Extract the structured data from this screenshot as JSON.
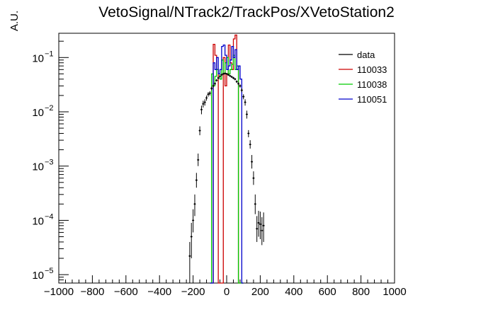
{
  "chart_data": {
    "type": "histogram",
    "title": "VetoSignal/NTrack2/TrackPos/XVetoStation2",
    "ylabel": "A.U.",
    "xlabel": "",
    "xlim": [
      -1000,
      1000
    ],
    "ylim": [
      7e-06,
      0.28
    ],
    "yscale": "log",
    "grid": false,
    "legend_position": "top-right",
    "x_ticks": [
      -1000,
      -800,
      -600,
      -400,
      -200,
      0,
      200,
      400,
      600,
      800,
      1000
    ],
    "x_tick_labels": [
      "−1000",
      "−800",
      "−600",
      "−400",
      "−200",
      "0",
      "200",
      "400",
      "600",
      "800",
      "1000"
    ],
    "y_ticks": [
      1e-05,
      0.0001,
      0.001,
      0.01,
      0.1
    ],
    "y_tick_labels": [
      "10",
      "10",
      "10",
      "10",
      "10"
    ],
    "y_tick_exponents": [
      "−5",
      "−4",
      "−3",
      "−2",
      "−1"
    ],
    "series": [
      {
        "name": "data",
        "color": "#000000",
        "style": "points",
        "x": [
          -220,
          -210,
          -200,
          -190,
          -180,
          -170,
          -160,
          -150,
          -140,
          -130,
          -120,
          -110,
          -100,
          -90,
          -80,
          -70,
          -60,
          -50,
          -40,
          -30,
          -20,
          -10,
          0,
          10,
          20,
          30,
          40,
          50,
          60,
          70,
          80,
          90,
          100,
          110,
          120,
          130,
          140,
          150,
          160,
          170,
          180,
          190,
          200,
          210,
          220
        ],
        "y": [
          2.2e-05,
          5e-05,
          0.0001,
          0.0002,
          0.00055,
          0.0013,
          0.0045,
          0.011,
          0.014,
          0.015,
          0.018,
          0.021,
          0.022,
          0.027,
          0.03,
          0.033,
          0.038,
          0.042,
          0.045,
          0.048,
          0.05,
          0.051,
          0.05,
          0.048,
          0.046,
          0.044,
          0.042,
          0.04,
          0.036,
          0.033,
          0.03,
          0.025,
          0.019,
          0.015,
          0.009,
          0.004,
          0.0025,
          0.0012,
          0.0006,
          0.0002,
          7e-05,
          9e-05,
          8.5e-05,
          6.5e-05,
          8e-05
        ],
        "yerr_low": [
          1.5e-05,
          3e-05,
          4e-05,
          8e-05,
          0.00015,
          0.0003,
          0.0008,
          0.002,
          0.002,
          0.002,
          0.002,
          0.002,
          0.002,
          0.002,
          0.002,
          0.002,
          0.002,
          0.002,
          0.002,
          0.002,
          0.002,
          0.002,
          0.002,
          0.002,
          0.002,
          0.002,
          0.002,
          0.002,
          0.002,
          0.002,
          0.002,
          0.002,
          0.002,
          0.002,
          0.0015,
          0.0006,
          0.0004,
          0.0003,
          0.00015,
          7e-05,
          3e-05,
          4e-05,
          4e-05,
          3e-05,
          4e-05
        ],
        "yerr_high": [
          1.8e-05,
          4e-05,
          6e-05,
          0.0001,
          0.0002,
          0.0004,
          0.0009,
          0.002,
          0.002,
          0.002,
          0.002,
          0.002,
          0.002,
          0.002,
          0.002,
          0.002,
          0.002,
          0.002,
          0.002,
          0.002,
          0.002,
          0.002,
          0.002,
          0.002,
          0.002,
          0.002,
          0.002,
          0.002,
          0.002,
          0.002,
          0.002,
          0.002,
          0.002,
          0.002,
          0.0015,
          0.0006,
          0.0005,
          0.0004,
          0.0002,
          0.0001,
          5e-05,
          6e-05,
          6e-05,
          5e-05,
          6e-05
        ]
      },
      {
        "name": "110033",
        "color": "#cc0000",
        "style": "step",
        "bin_edges": [
          -100,
          -90,
          -80,
          -70,
          -60,
          -50,
          -40,
          -30,
          -20,
          -10,
          0,
          10,
          20,
          30,
          40,
          50,
          60,
          70,
          80,
          90,
          100
        ],
        "values": [
          7e-06,
          7e-06,
          0.175,
          0.11,
          0.06,
          7e-06,
          7e-06,
          7e-06,
          0.1,
          0.03,
          0.05,
          0.17,
          0.08,
          0.06,
          0.22,
          0.26,
          0.06,
          7e-06,
          7e-06,
          7e-06
        ]
      },
      {
        "name": "110038",
        "color": "#00cc00",
        "style": "step",
        "bin_edges": [
          -100,
          -90,
          -80,
          -70,
          -60,
          -50,
          -40,
          -30,
          -20,
          -10,
          0,
          10,
          20,
          30,
          40,
          50,
          60,
          70,
          80,
          90,
          100
        ],
        "values": [
          7e-06,
          0.05,
          0.03,
          0.045,
          0.06,
          0.05,
          0.04,
          0.09,
          0.05,
          0.08,
          0.1,
          0.05,
          0.06,
          0.075,
          0.11,
          0.06,
          0.07,
          7e-06,
          7e-06,
          7e-06
        ]
      },
      {
        "name": "110051",
        "color": "#0000cc",
        "style": "step",
        "bin_edges": [
          -100,
          -90,
          -80,
          -70,
          -60,
          -50,
          -40,
          -30,
          -20,
          -10,
          0,
          10,
          20,
          30,
          40,
          50,
          60,
          70,
          80,
          90,
          100
        ],
        "values": [
          7e-06,
          7e-06,
          0.08,
          0.06,
          0.1,
          0.05,
          0.06,
          0.16,
          0.17,
          0.11,
          0.06,
          0.07,
          0.09,
          0.16,
          0.1,
          0.14,
          0.06,
          0.07,
          0.04,
          7e-06
        ]
      }
    ]
  }
}
